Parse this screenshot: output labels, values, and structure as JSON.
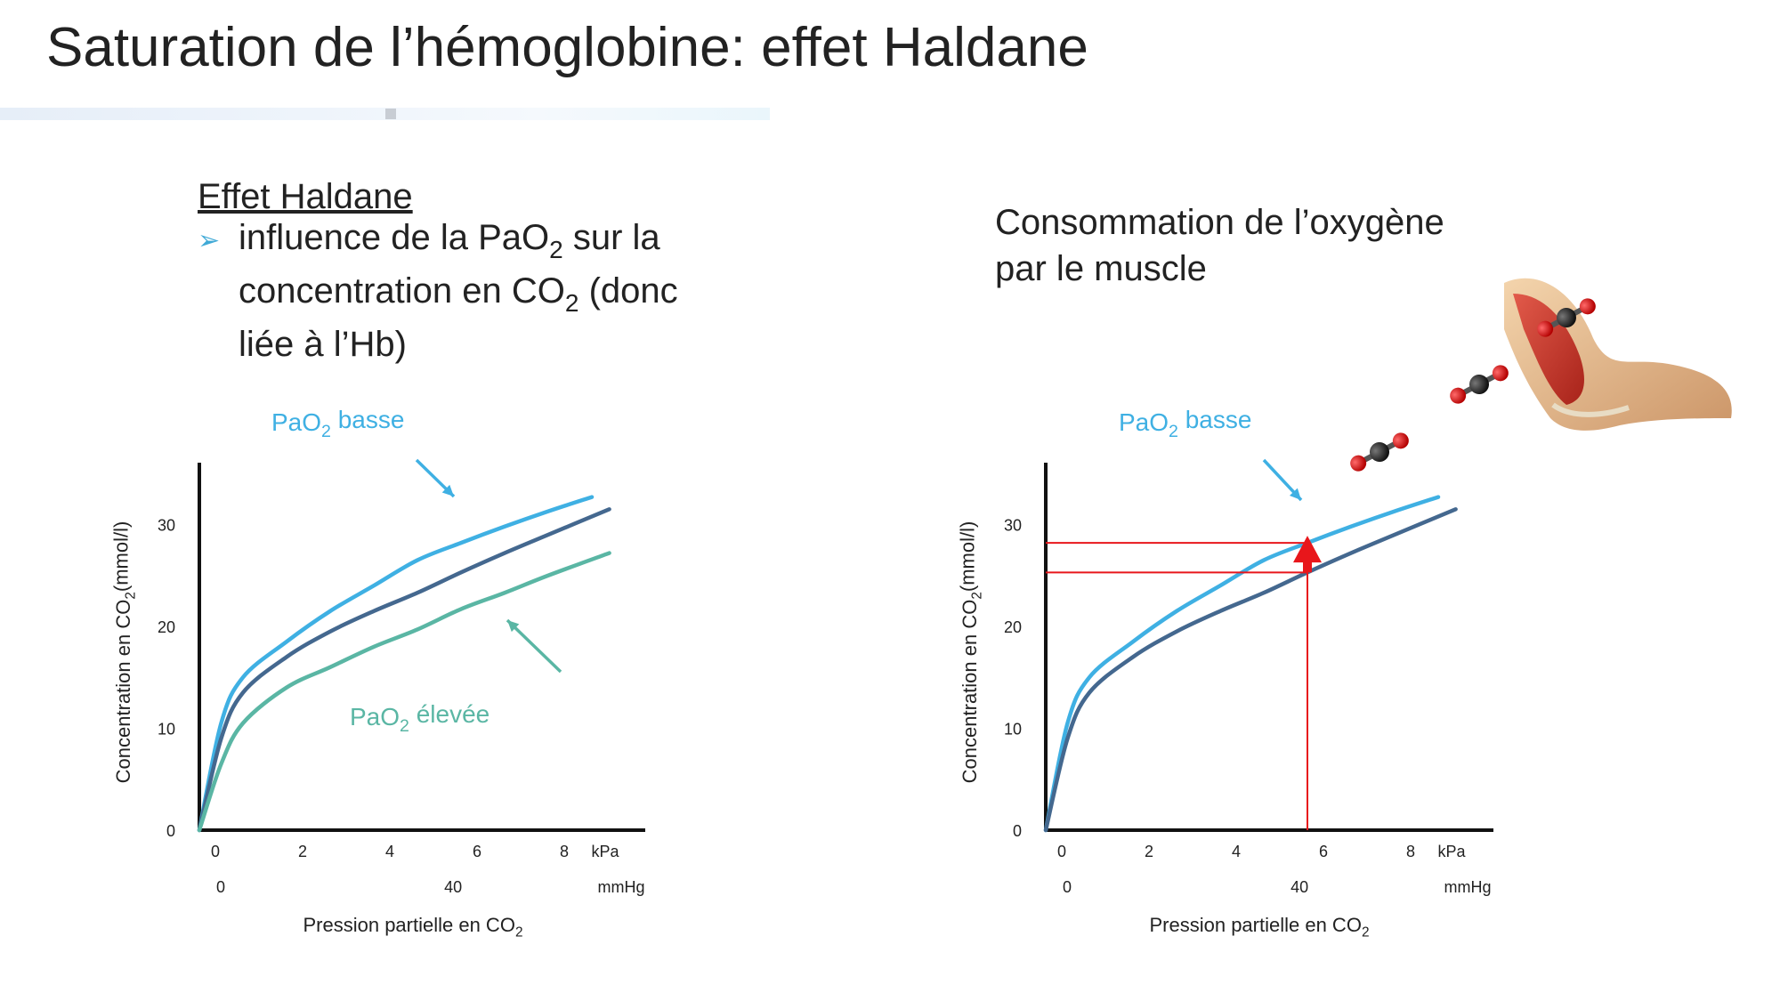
{
  "slide": {
    "title": "Saturation de l’hémoglobine: effet Haldane"
  },
  "left_panel": {
    "heading": "Effet Haldane",
    "bullet_line1_a": "influence de la PaO",
    "bullet_line1_sub": "2",
    "bullet_line1_b": " sur la",
    "bullet_line2_a": "concentration en CO",
    "bullet_line2_sub": "2",
    "bullet_line2_b": " (donc",
    "bullet_line3": "liée à l’Hb)"
  },
  "right_panel": {
    "heading_line1": "Consommation de l’oxygène",
    "heading_line2": "par le muscle"
  },
  "colors": {
    "low_pao2": "#3fb0e3",
    "middle": "#44688f",
    "high_pao2": "#5ab6a4",
    "highlight": "#e8161b"
  },
  "icons": [
    "arrow-bullet-icon",
    "arm-muscle-icon",
    "co2-molecule-icon"
  ],
  "chart_data": [
    {
      "type": "line",
      "title": "",
      "ylabel": "Concentration en CO2(mmol/l)",
      "xlabel": "Pression partielle en CO2",
      "x_unit": "kPa",
      "x_secondary_unit": "mmHg",
      "xlim": [
        0,
        9.6
      ],
      "ylim": [
        0,
        33.5
      ],
      "x_ticks": [
        "0",
        "2",
        "4",
        "6",
        "8"
      ],
      "x_secondary_ticks": [
        "0",
        "40"
      ],
      "y_ticks": [
        "0",
        "10",
        "20",
        "30"
      ],
      "grid": false,
      "series": [
        {
          "name": "PaO2 basse",
          "color": "#3fb0e3",
          "x": [
            0,
            0.5,
            1,
            2,
            3,
            4,
            5,
            6,
            7,
            8,
            9
          ],
          "y": [
            0,
            10.5,
            15,
            18.5,
            21.5,
            24,
            26.5,
            28.2,
            29.8,
            31.3,
            32.7
          ]
        },
        {
          "name": "",
          "color": "#44688f",
          "x": [
            0,
            0.5,
            1,
            2,
            3,
            4,
            5,
            6,
            7,
            8,
            9.4
          ],
          "y": [
            0,
            9,
            13.5,
            17,
            19.5,
            21.5,
            23.3,
            25.3,
            27.2,
            29,
            31.5
          ]
        },
        {
          "name": "PaO2 élevée",
          "color": "#5ab6a4",
          "x": [
            0,
            0.5,
            1,
            2,
            3,
            4,
            5,
            6,
            7,
            8,
            9.4
          ],
          "y": [
            0,
            6.5,
            10.5,
            14,
            16,
            18,
            19.7,
            21.7,
            23.3,
            25,
            27.2
          ]
        }
      ],
      "annotations": [
        "PaO2 basse",
        "PaO2 élevée"
      ]
    },
    {
      "type": "line",
      "title": "",
      "ylabel": "Concentration en CO2(mmol/l)",
      "xlabel": "Pression partielle en CO2",
      "x_unit": "kPa",
      "x_secondary_unit": "mmHg",
      "xlim": [
        0,
        9.6
      ],
      "ylim": [
        0,
        33.5
      ],
      "x_ticks": [
        "0",
        "2",
        "4",
        "6",
        "8"
      ],
      "x_secondary_ticks": [
        "0",
        "40"
      ],
      "y_ticks": [
        "0",
        "10",
        "20",
        "30"
      ],
      "grid": false,
      "series": [
        {
          "name": "PaO2 basse",
          "color": "#3fb0e3",
          "x": [
            0,
            0.5,
            1,
            2,
            3,
            4,
            5,
            6,
            7,
            8,
            9
          ],
          "y": [
            0,
            10.5,
            15,
            18.5,
            21.5,
            24,
            26.5,
            28.2,
            29.8,
            31.3,
            32.7
          ]
        },
        {
          "name": "",
          "color": "#44688f",
          "x": [
            0,
            0.5,
            1,
            2,
            3,
            4,
            5,
            6,
            7,
            8,
            9.4
          ],
          "y": [
            0,
            9,
            13.5,
            17,
            19.5,
            21.5,
            23.3,
            25.3,
            27.2,
            29,
            31.5
          ]
        }
      ],
      "highlight": {
        "x": 6,
        "y_from": 25.3,
        "y_to": 28.2,
        "color": "#e8161b"
      },
      "annotations": [
        "PaO2 basse"
      ]
    }
  ]
}
